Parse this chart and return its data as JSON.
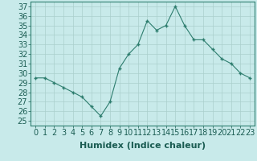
{
  "x": [
    0,
    1,
    2,
    3,
    4,
    5,
    6,
    7,
    8,
    9,
    10,
    11,
    12,
    13,
    14,
    15,
    16,
    17,
    18,
    19,
    20,
    21,
    22,
    23
  ],
  "y": [
    29.5,
    29.5,
    29,
    28.5,
    28,
    27.5,
    26.5,
    25.5,
    27,
    30.5,
    32,
    33,
    35.5,
    34.5,
    35,
    37,
    35,
    33.5,
    33.5,
    32.5,
    31.5,
    31,
    30,
    29.5
  ],
  "line_color": "#2d7d6e",
  "marker": "+",
  "bg_color": "#c8eaea",
  "grid_color": "#aacfcc",
  "xlabel": "Humidex (Indice chaleur)",
  "ylabel_ticks": [
    25,
    26,
    27,
    28,
    29,
    30,
    31,
    32,
    33,
    34,
    35,
    36,
    37
  ],
  "ylim": [
    24.5,
    37.5
  ],
  "xlim": [
    -0.5,
    23.5
  ],
  "xlabel_fontsize": 8,
  "tick_fontsize": 7
}
